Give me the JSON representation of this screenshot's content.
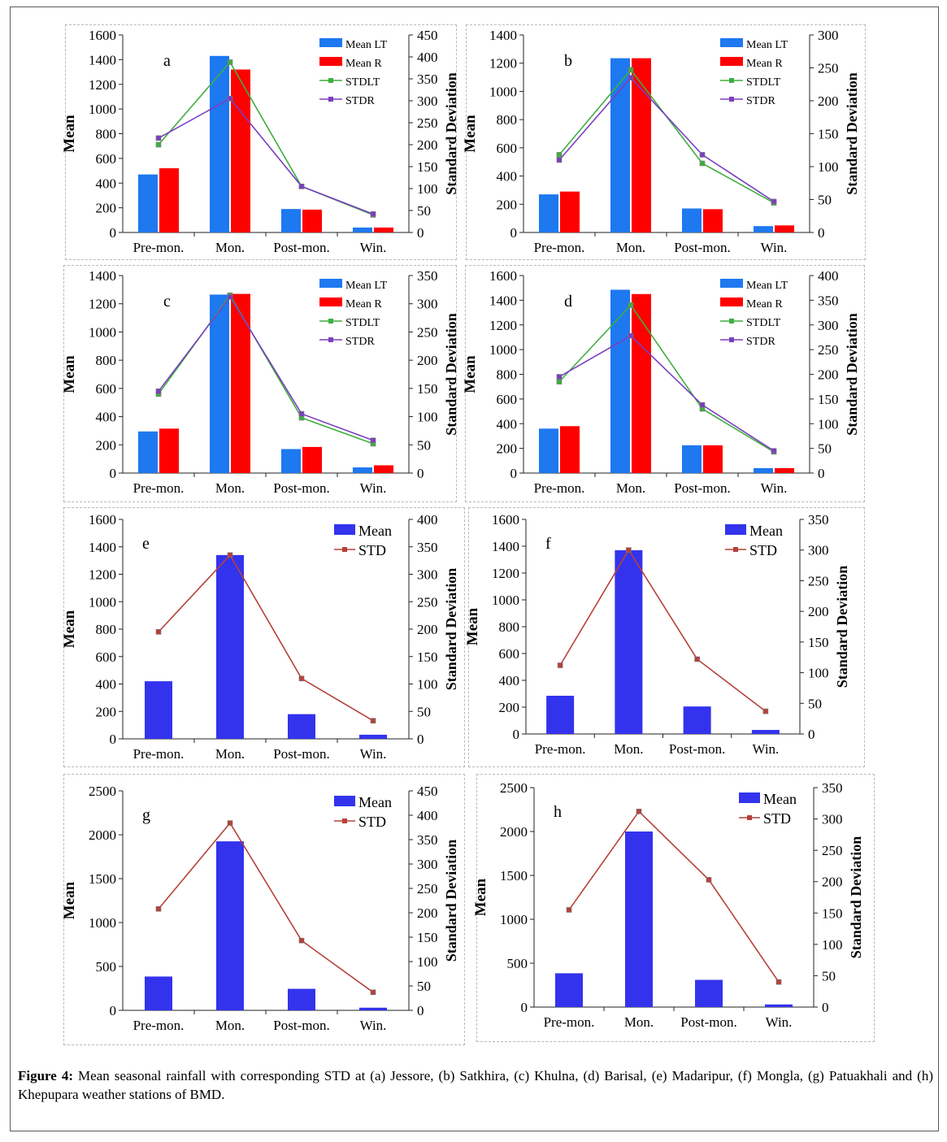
{
  "caption": {
    "label": "Figure 4:",
    "text": " Mean seasonal rainfall with corresponding STD at (a) Jessore, (b) Satkhira, (c) Khulna, (d) Barisal, (e) Madaripur, (f) Mongla, (g) Patuakhali and (h) Khepupara weather stations of BMD."
  },
  "colors": {
    "mean_lt": "#1e78f0",
    "mean_r": "#ff0000",
    "std_lt": "#3fae3f",
    "std_r": "#7a3fc0",
    "mean": "#3333ee",
    "std": "#b5413a"
  },
  "chart_data": [
    {
      "id": "a",
      "type": "bar",
      "panel_label": "a",
      "categories": [
        "Pre-mon.",
        "Mon.",
        "Post-mon.",
        "Win."
      ],
      "ylabel": "Mean",
      "y2label": "Standard Deviation",
      "ylim": [
        0,
        1600
      ],
      "y2lim": [
        0,
        450
      ],
      "yticks": [
        0,
        200,
        400,
        600,
        800,
        1000,
        1200,
        1400,
        1600
      ],
      "y2ticks": [
        0,
        50,
        100,
        150,
        200,
        250,
        300,
        350,
        400,
        450
      ],
      "series": [
        {
          "name": "Mean LT",
          "kind": "bar",
          "axis": "left",
          "color": "#1e78f0",
          "values": [
            470,
            1430,
            190,
            40
          ]
        },
        {
          "name": "Mean R",
          "kind": "bar",
          "axis": "left",
          "color": "#ff0000",
          "values": [
            520,
            1320,
            185,
            40
          ]
        },
        {
          "name": "STDLT",
          "kind": "line",
          "axis": "right",
          "color": "#3fae3f",
          "values": [
            200,
            388,
            105,
            40
          ]
        },
        {
          "name": "STDR",
          "kind": "line",
          "axis": "right",
          "color": "#7a3fc0",
          "values": [
            215,
            305,
            105,
            42
          ]
        }
      ],
      "grid": false,
      "legend": "top-right"
    },
    {
      "id": "b",
      "type": "bar",
      "panel_label": "b",
      "categories": [
        "Pre-mon.",
        "Mon.",
        "Post-mon.",
        "Win."
      ],
      "ylabel": "Mean",
      "y2label": "Standard Deviation",
      "ylim": [
        0,
        1400
      ],
      "y2lim": [
        0,
        300
      ],
      "yticks": [
        0,
        200,
        400,
        600,
        800,
        1000,
        1200,
        1400
      ],
      "y2ticks": [
        0,
        50,
        100,
        150,
        200,
        250,
        300
      ],
      "series": [
        {
          "name": "Mean LT",
          "kind": "bar",
          "axis": "left",
          "color": "#1e78f0",
          "values": [
            270,
            1235,
            170,
            45
          ]
        },
        {
          "name": "Mean R",
          "kind": "bar",
          "axis": "left",
          "color": "#ff0000",
          "values": [
            290,
            1235,
            165,
            50
          ]
        },
        {
          "name": "STDLT",
          "kind": "line",
          "axis": "right",
          "color": "#3fae3f",
          "values": [
            118,
            247,
            105,
            45
          ]
        },
        {
          "name": "STDR",
          "kind": "line",
          "axis": "right",
          "color": "#7a3fc0",
          "values": [
            110,
            235,
            118,
            47
          ]
        }
      ],
      "grid": false,
      "legend": "top-right"
    },
    {
      "id": "c",
      "type": "bar",
      "panel_label": "c",
      "categories": [
        "Pre-mon.",
        "Mon.",
        "Post-mon.",
        "Win."
      ],
      "ylabel": "Mean",
      "y2label": "Standard Deviation",
      "ylim": [
        0,
        1400
      ],
      "y2lim": [
        0,
        350
      ],
      "yticks": [
        0,
        200,
        400,
        600,
        800,
        1000,
        1200,
        1400
      ],
      "y2ticks": [
        0,
        50,
        100,
        150,
        200,
        250,
        300,
        350
      ],
      "series": [
        {
          "name": "Mean LT",
          "kind": "bar",
          "axis": "left",
          "color": "#1e78f0",
          "values": [
            295,
            1265,
            170,
            40
          ]
        },
        {
          "name": "Mean R",
          "kind": "bar",
          "axis": "left",
          "color": "#ff0000",
          "values": [
            315,
            1270,
            185,
            55
          ]
        },
        {
          "name": "STDLT",
          "kind": "line",
          "axis": "right",
          "color": "#3fae3f",
          "values": [
            140,
            315,
            98,
            52
          ]
        },
        {
          "name": "STDR",
          "kind": "line",
          "axis": "right",
          "color": "#7a3fc0",
          "values": [
            145,
            312,
            105,
            58
          ]
        }
      ],
      "grid": false,
      "legend": "top-right"
    },
    {
      "id": "d",
      "type": "bar",
      "panel_label": "d",
      "categories": [
        "Pre-mon.",
        "Mon.",
        "Post-mon.",
        "Win."
      ],
      "ylabel": "Mean",
      "y2label": "Standard Deviation",
      "ylim": [
        0,
        1600
      ],
      "y2lim": [
        0,
        400
      ],
      "yticks": [
        0,
        200,
        400,
        600,
        800,
        1000,
        1200,
        1400,
        1600
      ],
      "y2ticks": [
        0,
        50,
        100,
        150,
        200,
        250,
        300,
        350,
        400
      ],
      "series": [
        {
          "name": "Mean LT",
          "kind": "bar",
          "axis": "left",
          "color": "#1e78f0",
          "values": [
            360,
            1485,
            225,
            40
          ]
        },
        {
          "name": "Mean R",
          "kind": "bar",
          "axis": "left",
          "color": "#ff0000",
          "values": [
            380,
            1450,
            225,
            40
          ]
        },
        {
          "name": "STDLT",
          "kind": "line",
          "axis": "right",
          "color": "#3fae3f",
          "values": [
            185,
            340,
            130,
            43
          ]
        },
        {
          "name": "STDR",
          "kind": "line",
          "axis": "right",
          "color": "#7a3fc0",
          "values": [
            195,
            278,
            138,
            45
          ]
        }
      ],
      "grid": false,
      "legend": "top-right"
    },
    {
      "id": "e",
      "type": "bar",
      "panel_label": "e",
      "categories": [
        "Pre-mon.",
        "Mon.",
        "Post-mon.",
        "Win."
      ],
      "ylabel": "Mean",
      "y2label": "Standard  Deviation",
      "ylim": [
        0,
        1600
      ],
      "y2lim": [
        0,
        400
      ],
      "yticks": [
        0,
        200,
        400,
        600,
        800,
        1000,
        1200,
        1400,
        1600
      ],
      "y2ticks": [
        0,
        50,
        100,
        150,
        200,
        250,
        300,
        350,
        400
      ],
      "series": [
        {
          "name": "Mean",
          "kind": "bar",
          "axis": "left",
          "color": "#3333ee",
          "values": [
            420,
            1340,
            180,
            30
          ]
        },
        {
          "name": "STD",
          "kind": "line",
          "axis": "right",
          "color": "#b5413a",
          "values": [
            195,
            335,
            110,
            33
          ]
        }
      ],
      "grid": false,
      "legend": "top-right"
    },
    {
      "id": "f",
      "type": "bar",
      "panel_label": "f",
      "categories": [
        "Pre-mon.",
        "Mon.",
        "Post-mon.",
        "Win."
      ],
      "ylabel": "Mean",
      "y2label": "Standard  Deviation",
      "ylim": [
        0,
        1600
      ],
      "y2lim": [
        0,
        350
      ],
      "yticks": [
        0,
        200,
        400,
        600,
        800,
        1000,
        1200,
        1400,
        1600
      ],
      "y2ticks": [
        0,
        50,
        100,
        150,
        200,
        250,
        300,
        350
      ],
      "series": [
        {
          "name": "Mean",
          "kind": "bar",
          "axis": "left",
          "color": "#3333ee",
          "values": [
            285,
            1370,
            205,
            30
          ]
        },
        {
          "name": "STD",
          "kind": "line",
          "axis": "right",
          "color": "#b5413a",
          "values": [
            112,
            300,
            122,
            37
          ]
        }
      ],
      "grid": false,
      "legend": "top-right"
    },
    {
      "id": "g",
      "type": "bar",
      "panel_label": "g",
      "categories": [
        "Pre-mon.",
        "Mon.",
        "Post-mon.",
        "Win."
      ],
      "ylabel": "Mean",
      "y2label": "Standard  Deviation",
      "ylim": [
        0,
        2500
      ],
      "y2lim": [
        0,
        450
      ],
      "yticks": [
        0,
        500,
        1000,
        1500,
        2000,
        2500
      ],
      "y2ticks": [
        0,
        50,
        100,
        150,
        200,
        250,
        300,
        350,
        400,
        450
      ],
      "series": [
        {
          "name": "Mean",
          "kind": "bar",
          "axis": "left",
          "color": "#3333ee",
          "values": [
            385,
            1925,
            245,
            30
          ]
        },
        {
          "name": "STD",
          "kind": "line",
          "axis": "right",
          "color": "#b5413a",
          "values": [
            208,
            384,
            143,
            37
          ]
        }
      ],
      "grid": false,
      "legend": "top-right"
    },
    {
      "id": "h",
      "type": "bar",
      "panel_label": "h",
      "categories": [
        "Pre-mon.",
        "Mon.",
        "Post-mon.",
        "Win."
      ],
      "ylabel": "Mean",
      "y2label": "Standard  Deviation",
      "ylim": [
        0,
        2500
      ],
      "y2lim": [
        0,
        350
      ],
      "yticks": [
        0,
        500,
        1000,
        1500,
        2000,
        2500
      ],
      "y2ticks": [
        0,
        50,
        100,
        150,
        200,
        250,
        300,
        350
      ],
      "series": [
        {
          "name": "Mean",
          "kind": "bar",
          "axis": "left",
          "color": "#3333ee",
          "values": [
            385,
            2000,
            310,
            30
          ]
        },
        {
          "name": "STD",
          "kind": "line",
          "axis": "right",
          "color": "#b5413a",
          "values": [
            155,
            312,
            203,
            40
          ]
        }
      ],
      "grid": false,
      "legend": "top-right"
    }
  ]
}
